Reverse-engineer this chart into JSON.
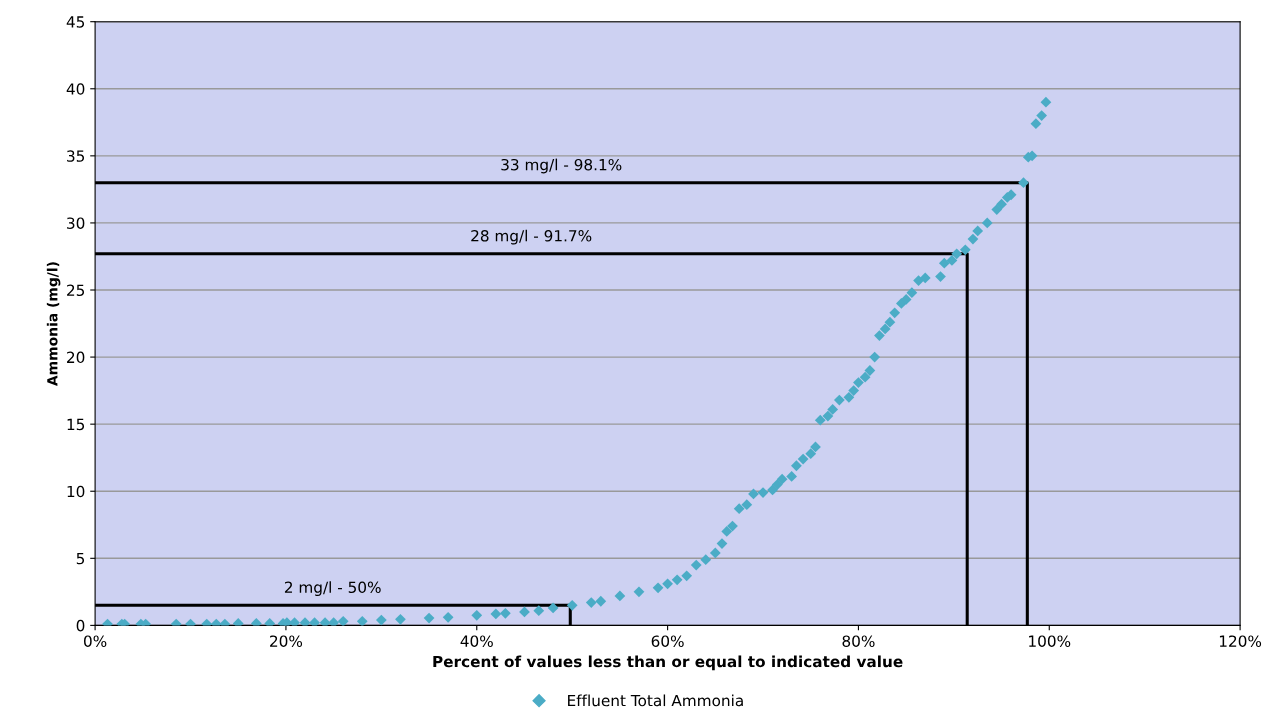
{
  "chart_data": {
    "type": "scatter",
    "xlabel": "Percent of values less than or equal to indicated value",
    "ylabel": "Ammonia (mg/l)",
    "xlim": [
      0,
      120
    ],
    "ylim": [
      0,
      45
    ],
    "xticks": [
      {
        "value": 0,
        "label": "0%"
      },
      {
        "value": 20,
        "label": "20%"
      },
      {
        "value": 40,
        "label": "40%"
      },
      {
        "value": 60,
        "label": "60%"
      },
      {
        "value": 80,
        "label": "80%"
      },
      {
        "value": 100,
        "label": "100%"
      },
      {
        "value": 120,
        "label": "120%"
      }
    ],
    "yticks": [
      0,
      5,
      10,
      15,
      20,
      25,
      30,
      35,
      40,
      45
    ],
    "grid": "y",
    "legend": "bottom",
    "marker": "diamond",
    "series": [
      {
        "name": "Effluent Total Ammonia",
        "color": "#4bacc6",
        "x": [
          1.3,
          2.8,
          3.1,
          4.8,
          5.3,
          8.5,
          10,
          11.7,
          12.7,
          13.6,
          15,
          16.9,
          18.3,
          19.7,
          20.1,
          20.9,
          22,
          23,
          24.1,
          25,
          26,
          28,
          30,
          32,
          35,
          37,
          40,
          42,
          43,
          45,
          46.5,
          48,
          50,
          52,
          53,
          55,
          57,
          59,
          60,
          61,
          62,
          63,
          64,
          65,
          65.7,
          66.2,
          66.8,
          67.5,
          68.3,
          69,
          70,
          71,
          71.5,
          72,
          73,
          73.5,
          74.2,
          75,
          75.5,
          76,
          76.8,
          77.3,
          78,
          79,
          79.5,
          80,
          80.7,
          81.2,
          81.7,
          82.2,
          82.8,
          83.3,
          83.8,
          84.5,
          85,
          85.6,
          86.3,
          87,
          88.6,
          89,
          89.8,
          90.3,
          91.2,
          92,
          92.5,
          93.5,
          94.5,
          95,
          95.6,
          96,
          97.3,
          97.8,
          98.2,
          98.6,
          99.2,
          99.65
        ],
        "values": [
          0.1,
          0.1,
          0.1,
          0.1,
          0.1,
          0.1,
          0.1,
          0.1,
          0.1,
          0.1,
          0.15,
          0.15,
          0.15,
          0.15,
          0.2,
          0.2,
          0.2,
          0.2,
          0.2,
          0.2,
          0.3,
          0.3,
          0.4,
          0.45,
          0.55,
          0.6,
          0.75,
          0.85,
          0.9,
          1.0,
          1.1,
          1.3,
          1.5,
          1.7,
          1.8,
          2.2,
          2.5,
          2.8,
          3.1,
          3.4,
          3.7,
          4.5,
          4.9,
          5.4,
          6.1,
          7.0,
          7.4,
          8.7,
          9.0,
          9.8,
          9.9,
          10.1,
          10.5,
          10.9,
          11.1,
          11.9,
          12.4,
          12.8,
          13.3,
          15.3,
          15.6,
          16.1,
          16.8,
          17.0,
          17.5,
          18.1,
          18.5,
          19.0,
          20.0,
          21.6,
          22.1,
          22.6,
          23.3,
          24.0,
          24.3,
          24.8,
          25.7,
          25.9,
          26.0,
          27.0,
          27.2,
          27.7,
          28.0,
          28.8,
          29.4,
          30.0,
          31.0,
          31.4,
          31.9,
          32.1,
          33.0,
          34.9,
          35.0,
          37.4,
          38.0,
          39.0
        ]
      },
      {
        "type": "line",
        "marker": "none",
        "color": "#000000",
        "x": [
          0,
          97.7,
          97.7
        ],
        "values": [
          33.0,
          33.0,
          0
        ]
      },
      {
        "type": "line",
        "marker": "none",
        "color": "#000000",
        "x": [
          0,
          91.4,
          91.4
        ],
        "values": [
          27.7,
          27.7,
          0
        ]
      },
      {
        "type": "line",
        "marker": "none",
        "color": "#000000",
        "x": [
          0,
          49.8,
          49.8
        ],
        "values": [
          1.5,
          1.5,
          0
        ]
      }
    ],
    "annotations": [
      "33 mg/l - 98.1%",
      "28 mg/l - 91.7%",
      "2 mg/l - 50%"
    ]
  }
}
